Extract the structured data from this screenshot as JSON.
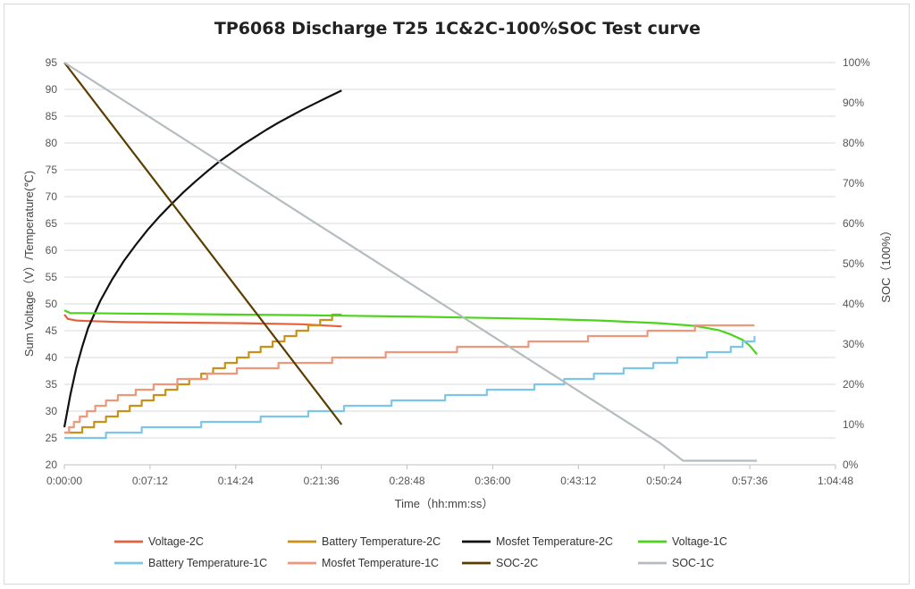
{
  "chart_data": {
    "type": "line",
    "title": "TP6068  Discharge T25 1C&2C-100%SOC  Test   curve",
    "xlabel": "Time（hh:mm:ss）",
    "ylabel_left": "Sum Voltage（V）/Temperature(℃)",
    "ylabel_right": "SOC（100%）",
    "x_unit": "minutes",
    "xlim": [
      0,
      64.8
    ],
    "x_ticks": [
      "0:00:00",
      "0:07:12",
      "0:14:24",
      "0:21:36",
      "0:28:48",
      "0:36:00",
      "0:43:12",
      "0:50:24",
      "0:57:36",
      "1:04:48"
    ],
    "ylim_left": [
      20,
      95
    ],
    "y_ticks_left": [
      "20",
      "25",
      "30",
      "35",
      "40",
      "45",
      "50",
      "55",
      "60",
      "65",
      "70",
      "75",
      "80",
      "85",
      "90",
      "95"
    ],
    "ylim_right": [
      0,
      1
    ],
    "y_ticks_right": [
      "0%",
      "10%",
      "20%",
      "30%",
      "40%",
      "50%",
      "60%",
      "70%",
      "80%",
      "90%",
      "100%"
    ],
    "grid": "horizontal",
    "legend_position": "bottom",
    "series": [
      {
        "name": "Voltage-2C",
        "color": "#E5603B",
        "axis": "left",
        "step": false,
        "x": [
          0,
          0.3,
          1,
          2,
          5,
          10,
          15,
          20,
          23.3
        ],
        "y": [
          48.0,
          47.2,
          46.9,
          46.8,
          46.6,
          46.5,
          46.4,
          46.2,
          45.8
        ]
      },
      {
        "name": "Battery Temperature-2C",
        "color": "#C9911A",
        "axis": "left",
        "step": true,
        "x": [
          0,
          1.5,
          2.5,
          3.5,
          4.5,
          5.5,
          6.5,
          7.5,
          8.5,
          9.5,
          10.5,
          11.5,
          12.5,
          13.5,
          14.5,
          15.5,
          16.5,
          17.5,
          18.5,
          19.5,
          20.5,
          21.5,
          22.5,
          23.3
        ],
        "y": [
          26,
          27,
          28,
          29,
          30,
          31,
          32,
          33,
          34,
          35,
          36,
          37,
          38,
          39,
          40,
          41,
          42,
          43,
          44,
          45,
          46,
          47,
          48,
          48
        ]
      },
      {
        "name": "Mosfet Temperature-2C",
        "color": "#111111",
        "axis": "left",
        "step": false,
        "x": [
          0,
          0.5,
          1,
          1.5,
          2,
          3,
          4,
          5,
          6,
          7,
          8,
          9,
          10,
          11,
          12,
          13,
          14,
          15,
          16,
          17,
          18,
          19,
          20,
          21,
          22,
          23.3
        ],
        "y": [
          27,
          33,
          38,
          42,
          45.5,
          50.5,
          54.5,
          58,
          61,
          63.8,
          66.3,
          68.6,
          70.8,
          72.8,
          74.7,
          76.5,
          78.1,
          79.7,
          81.1,
          82.5,
          83.8,
          85,
          86.2,
          87.3,
          88.4,
          89.8
        ]
      },
      {
        "name": "Voltage-1C",
        "color": "#4CD41C",
        "axis": "left",
        "step": false,
        "x": [
          0,
          0.5,
          5,
          10,
          20,
          30,
          40,
          45,
          50,
          53,
          55,
          56,
          57,
          57.6,
          58.2
        ],
        "y": [
          48.8,
          48.3,
          48.2,
          48.1,
          47.9,
          47.6,
          47.2,
          46.9,
          46.4,
          45.9,
          45.1,
          44.3,
          43.3,
          42.2,
          40.6
        ]
      },
      {
        "name": "Battery Temperature-1C",
        "color": "#7CC6EC",
        "axis": "left",
        "step": true,
        "x": [
          0,
          3.5,
          6.5,
          11.5,
          16.5,
          20.5,
          23.5,
          27.5,
          32.0,
          35.5,
          39.5,
          42.0,
          44.5,
          47.0,
          49.5,
          51.5,
          54.0,
          56.0,
          57.0,
          58.0
        ],
        "y": [
          25,
          26,
          27,
          28,
          29,
          30,
          31,
          32,
          33,
          34,
          35,
          36,
          37,
          38,
          39,
          40,
          41,
          42,
          43,
          44
        ]
      },
      {
        "name": "Mosfet Temperature-1C",
        "color": "#F0967A",
        "axis": "left",
        "step": true,
        "x": [
          0,
          0.4,
          0.8,
          1.3,
          1.9,
          2.6,
          3.5,
          4.5,
          6.0,
          7.5,
          9.5,
          12.0,
          14.5,
          18.0,
          22.5,
          27.0,
          33.0,
          39.0,
          44.0,
          49.0,
          53.0,
          58.0
        ],
        "y": [
          26,
          27,
          28,
          29,
          30,
          31,
          32,
          33,
          34,
          35,
          36,
          37,
          38,
          39,
          40,
          41,
          42,
          43,
          44,
          45,
          46,
          46
        ]
      },
      {
        "name": "SOC-2C",
        "color": "#5C3D00",
        "axis": "right",
        "step": false,
        "x": [
          0,
          23.3
        ],
        "y": [
          1.0,
          0.1
        ]
      },
      {
        "name": "SOC-1C",
        "color": "#B5BCC0",
        "axis": "right",
        "step": false,
        "x": [
          0,
          50.0,
          52.0,
          58.2
        ],
        "y": [
          1.0,
          0.055,
          0.01,
          0.01
        ]
      }
    ]
  }
}
